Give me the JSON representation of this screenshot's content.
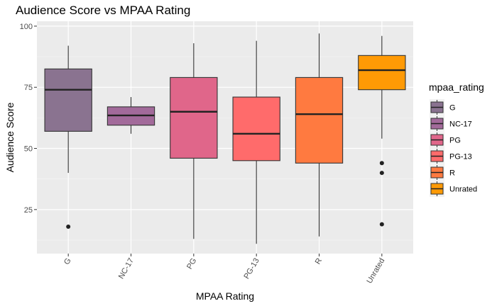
{
  "chart_data": {
    "type": "boxplot",
    "title": "Audience Score vs MPAA Rating",
    "xlabel": "MPAA Rating",
    "ylabel": "Audience Score",
    "ylim": [
      7,
      102
    ],
    "yticks": [
      25,
      50,
      75,
      100
    ],
    "grid": true,
    "legend": {
      "title": "mpaa_rating",
      "position": "right"
    },
    "categories": [
      "G",
      "NC-17",
      "PG",
      "PG-13",
      "R",
      "Unrated"
    ],
    "series": [
      {
        "name": "G",
        "color": "#8A7390",
        "whisker_low": 40,
        "q1": 57,
        "median": 74,
        "q3": 82.5,
        "whisker_high": 92,
        "outliers": [
          18
        ]
      },
      {
        "name": "NC-17",
        "color": "#A26A9A",
        "whisker_low": 56,
        "q1": 59.5,
        "median": 63.5,
        "q3": 67,
        "whisker_high": 71,
        "outliers": []
      },
      {
        "name": "PG",
        "color": "#E0668A",
        "whisker_low": 13,
        "q1": 46,
        "median": 65,
        "q3": 79,
        "whisker_high": 93,
        "outliers": []
      },
      {
        "name": "PG-13",
        "color": "#FF6B6B",
        "whisker_low": 11,
        "q1": 45,
        "median": 56,
        "q3": 71,
        "whisker_high": 94,
        "outliers": []
      },
      {
        "name": "R",
        "color": "#FF7A40",
        "whisker_low": 14,
        "q1": 44,
        "median": 64,
        "q3": 79,
        "whisker_high": 97,
        "outliers": []
      },
      {
        "name": "Unrated",
        "color": "#FF9A05",
        "whisker_low": 54,
        "q1": 74,
        "median": 82,
        "q3": 88,
        "whisker_high": 96,
        "outliers": [
          44,
          40,
          19
        ]
      }
    ]
  }
}
